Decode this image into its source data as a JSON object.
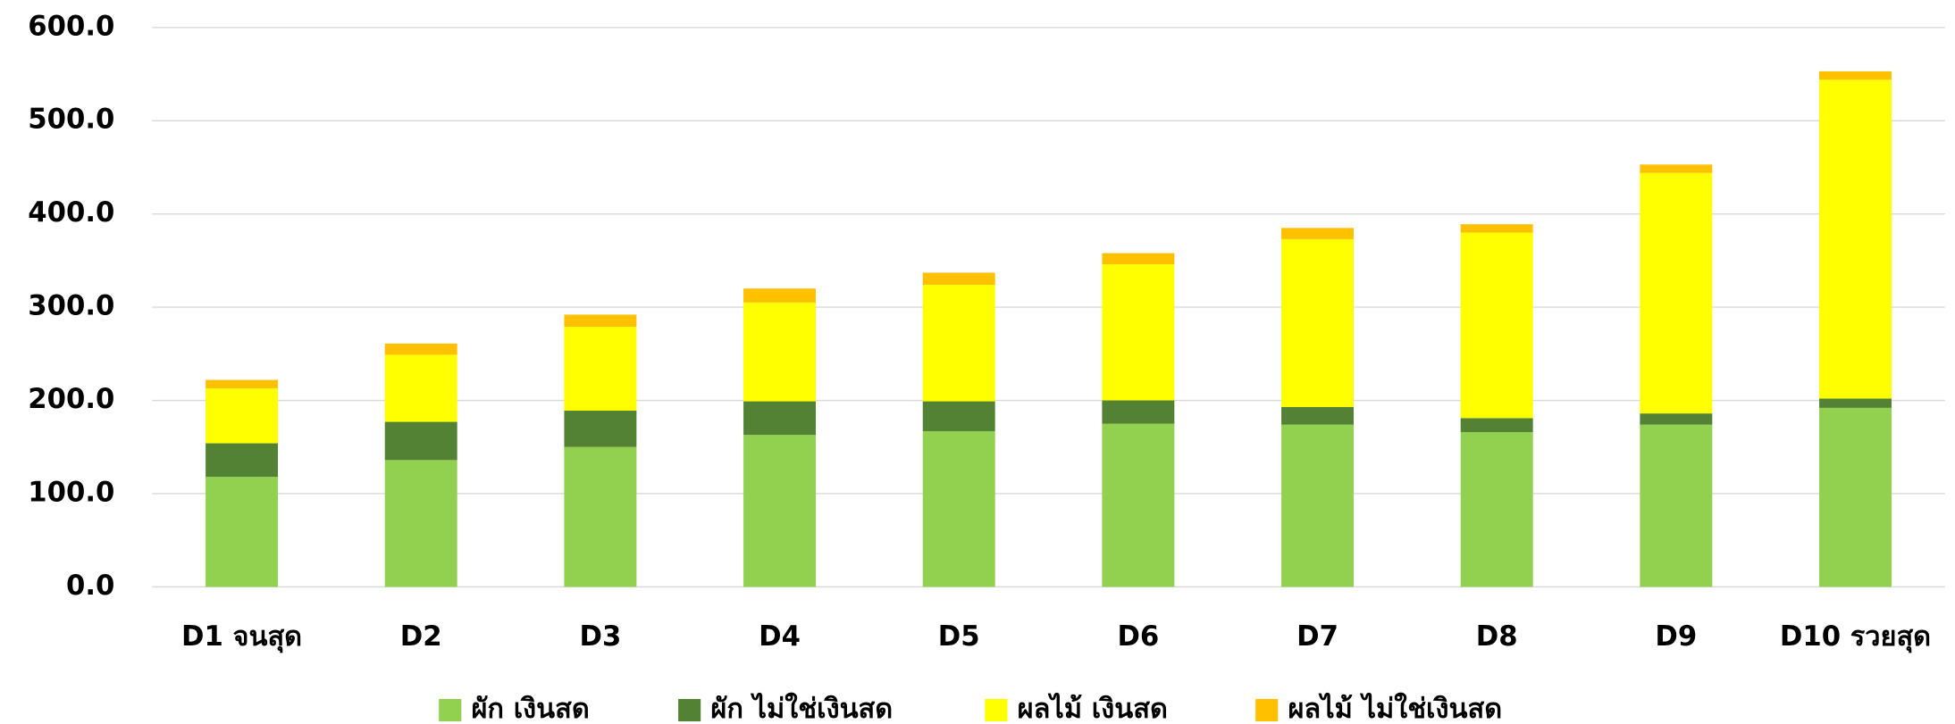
{
  "chart_data": {
    "type": "stacked_bar",
    "categories": [
      "D1 จนสุด",
      "D2",
      "D3",
      "D4",
      "D5",
      "D6",
      "D7",
      "D8",
      "D9",
      "D10 รวยสุด"
    ],
    "series": [
      {
        "name": "ผัก เงินสด",
        "color": "#92d050",
        "values": [
          118,
          136,
          150,
          163,
          167,
          175,
          174,
          166,
          174,
          192
        ]
      },
      {
        "name": "ผัก ไม่ใช่เงินสด",
        "color": "#548235",
        "values": [
          36,
          41,
          39,
          36,
          32,
          25,
          19,
          15,
          12,
          10
        ]
      },
      {
        "name": "ผลไม้ เงินสด",
        "color": "#ffff00",
        "values": [
          59,
          72,
          90,
          106,
          125,
          146,
          180,
          199,
          258,
          342
        ]
      },
      {
        "name": "ผลไม้ ไม่ใช่เงินสด",
        "color": "#ffc000",
        "values": [
          9,
          12,
          13,
          15,
          13,
          12,
          12,
          9,
          9,
          9
        ]
      }
    ],
    "ylim": [
      0,
      600
    ],
    "yticks": [
      {
        "value": 0,
        "label": "0.0"
      },
      {
        "value": 100,
        "label": "100.0"
      },
      {
        "value": 200,
        "label": "200.0"
      },
      {
        "value": 300,
        "label": "300.0"
      },
      {
        "value": 400,
        "label": "400.0"
      },
      {
        "value": 500,
        "label": "500.0"
      },
      {
        "value": 600,
        "label": "600.0"
      }
    ],
    "grid": true,
    "legend": "bottom"
  }
}
